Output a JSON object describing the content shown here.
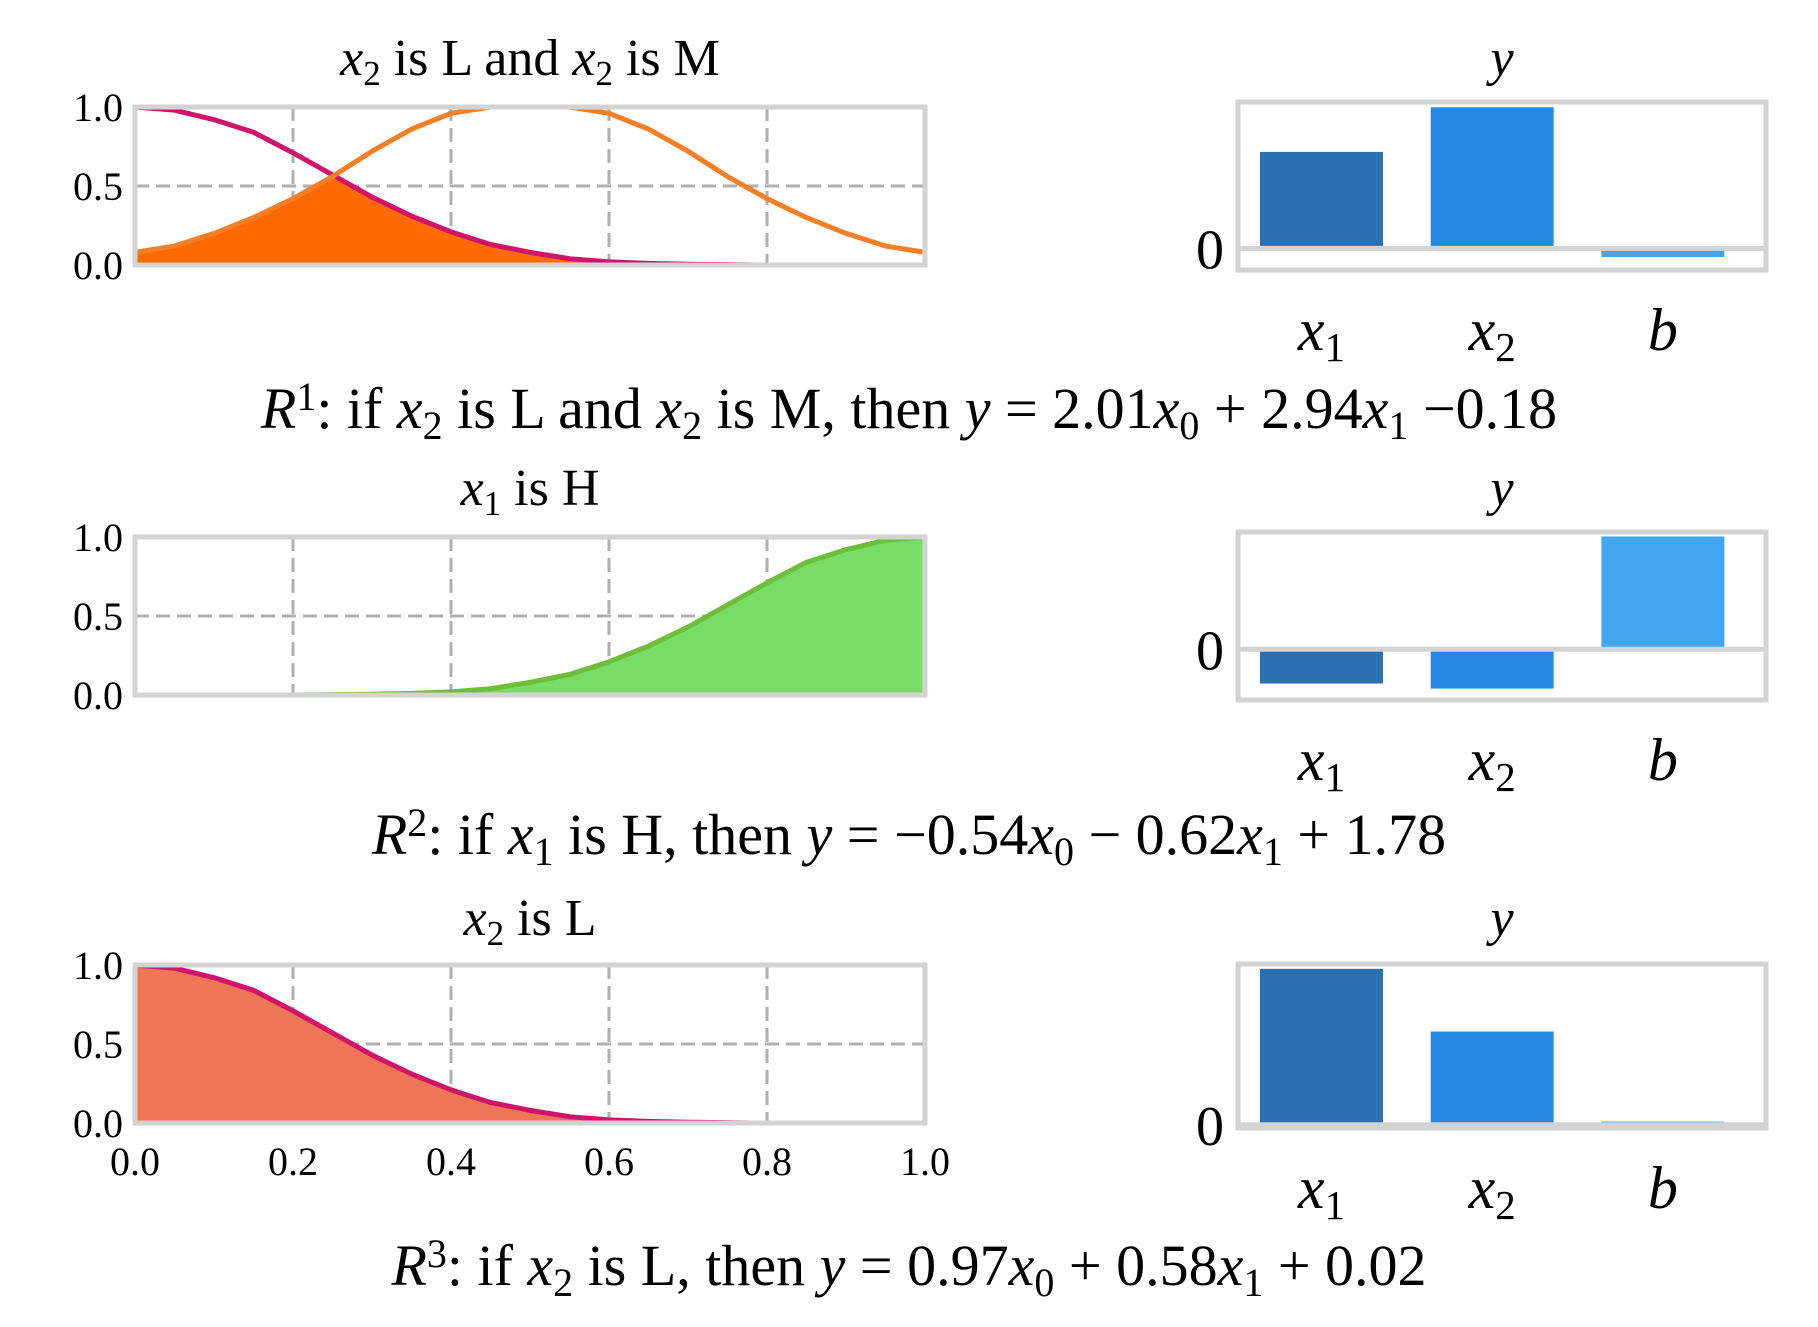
{
  "colors": {
    "frame": "#d3d3d3",
    "grid": "#b0b0b0",
    "low": "#d0136b",
    "mid": "#f47f26",
    "high": "#6dbf3a",
    "fill_r1": "#ff6a00",
    "fill_r2": "#77dd66",
    "fill_r3": "#ef7557",
    "bar_x1": "#2c70b4",
    "bar_x2": "#2589e3",
    "bar_b": "#41a6ef"
  },
  "rules": [
    {
      "id": "R1",
      "rule_label": {
        "letter": "R",
        "index": "1"
      },
      "rule_text_parts": [
        ": if ",
        "x",
        "2",
        " is L and ",
        "x",
        "2",
        " is M, then ",
        "y",
        " = 2.01",
        "x",
        "0",
        " + 2.94",
        "x",
        "1",
        " −0.18"
      ],
      "membership_title_parts": [
        "x",
        "2",
        " is L and ",
        "x",
        "2",
        " is M"
      ],
      "bar_title": "y",
      "curves": [
        {
          "name": "L",
          "color_key": "low",
          "x": [
            0.0,
            0.05,
            0.1,
            0.15,
            0.2,
            0.25,
            0.3,
            0.35,
            0.4,
            0.45,
            0.5,
            0.55,
            0.6,
            0.65,
            0.7,
            0.75,
            0.8
          ],
          "y": [
            1.0,
            0.98,
            0.92,
            0.84,
            0.71,
            0.57,
            0.43,
            0.31,
            0.21,
            0.13,
            0.08,
            0.04,
            0.02,
            0.01,
            0.005,
            0.002,
            0.0
          ]
        },
        {
          "name": "M",
          "color_key": "mid",
          "x": [
            0.0,
            0.05,
            0.1,
            0.15,
            0.2,
            0.25,
            0.3,
            0.35,
            0.4,
            0.45,
            0.5,
            0.55,
            0.6,
            0.65,
            0.7,
            0.75,
            0.8,
            0.85,
            0.9,
            0.95,
            1.0
          ],
          "y": [
            0.08,
            0.12,
            0.2,
            0.3,
            0.42,
            0.56,
            0.72,
            0.86,
            0.96,
            1.0,
            1.0,
            1.0,
            0.96,
            0.86,
            0.72,
            0.56,
            0.42,
            0.3,
            0.2,
            0.12,
            0.08
          ]
        }
      ],
      "fill": {
        "color_key": "fill_r1",
        "x": [
          0.0,
          0.05,
          0.1,
          0.15,
          0.2,
          0.25,
          0.3,
          0.35,
          0.4,
          0.45,
          0.5,
          0.55,
          0.6,
          0.65,
          0.7,
          0.75,
          0.8
        ],
        "y": [
          0.08,
          0.12,
          0.2,
          0.3,
          0.42,
          0.55,
          0.43,
          0.31,
          0.21,
          0.13,
          0.08,
          0.04,
          0.02,
          0.01,
          0.005,
          0.002,
          0.0
        ]
      },
      "bars": {
        "categories_parts": [
          [
            "x",
            "1"
          ],
          [
            "x",
            "2"
          ],
          [
            "b",
            ""
          ]
        ],
        "values": [
          2.01,
          2.94,
          -0.18
        ],
        "ylim": [
          -0.45,
          3.05
        ]
      }
    },
    {
      "id": "R2",
      "rule_label": {
        "letter": "R",
        "index": "2"
      },
      "rule_text_parts": [
        ": if ",
        "x",
        "1",
        " is H, then ",
        "y",
        " = −0.54",
        "x",
        "0",
        " − 0.62",
        "x",
        "1",
        " + 1.78"
      ],
      "membership_title_parts": [
        "x",
        "1",
        " is H"
      ],
      "bar_title": "y",
      "curves": [
        {
          "name": "H",
          "color_key": "high",
          "x": [
            0.2,
            0.25,
            0.3,
            0.35,
            0.4,
            0.45,
            0.5,
            0.55,
            0.6,
            0.65,
            0.7,
            0.75,
            0.8,
            0.85,
            0.9,
            0.95,
            1.0
          ],
          "y": [
            0.0,
            0.002,
            0.005,
            0.01,
            0.02,
            0.04,
            0.08,
            0.13,
            0.21,
            0.31,
            0.43,
            0.57,
            0.71,
            0.84,
            0.92,
            0.98,
            1.0
          ]
        }
      ],
      "fill": {
        "color_key": "fill_r2",
        "x": [
          0.2,
          0.25,
          0.3,
          0.35,
          0.4,
          0.45,
          0.5,
          0.55,
          0.6,
          0.65,
          0.7,
          0.75,
          0.8,
          0.85,
          0.9,
          0.95,
          1.0
        ],
        "y": [
          0.0,
          0.002,
          0.005,
          0.01,
          0.02,
          0.04,
          0.08,
          0.13,
          0.21,
          0.31,
          0.43,
          0.57,
          0.71,
          0.84,
          0.92,
          0.98,
          1.0
        ]
      },
      "bars": {
        "categories_parts": [
          [
            "x",
            "1"
          ],
          [
            "x",
            "2"
          ],
          [
            "b",
            ""
          ]
        ],
        "values": [
          -0.54,
          -0.62,
          1.78
        ],
        "ylim": [
          -0.8,
          1.85
        ]
      }
    },
    {
      "id": "R3",
      "rule_label": {
        "letter": "R",
        "index": "3"
      },
      "rule_text_parts": [
        ": if ",
        "x",
        "2",
        " is L, then ",
        "y",
        " = 0.97",
        "x",
        "0",
        " + 0.58",
        "x",
        "1",
        " + 0.02"
      ],
      "membership_title_parts": [
        "x",
        "2",
        " is L"
      ],
      "bar_title": "y",
      "curves": [
        {
          "name": "L",
          "color_key": "low",
          "x": [
            0.0,
            0.05,
            0.1,
            0.15,
            0.2,
            0.25,
            0.3,
            0.35,
            0.4,
            0.45,
            0.5,
            0.55,
            0.6,
            0.65,
            0.7,
            0.75,
            0.78
          ],
          "y": [
            1.0,
            0.98,
            0.92,
            0.84,
            0.71,
            0.57,
            0.43,
            0.31,
            0.21,
            0.13,
            0.08,
            0.04,
            0.02,
            0.01,
            0.005,
            0.002,
            0.0
          ]
        }
      ],
      "fill": {
        "color_key": "fill_r3",
        "x": [
          0.0,
          0.05,
          0.1,
          0.15,
          0.2,
          0.25,
          0.3,
          0.35,
          0.4,
          0.45,
          0.5,
          0.55,
          0.6,
          0.65,
          0.7,
          0.75,
          0.78
        ],
        "y": [
          1.0,
          0.98,
          0.92,
          0.84,
          0.71,
          0.57,
          0.43,
          0.31,
          0.21,
          0.13,
          0.08,
          0.04,
          0.02,
          0.01,
          0.005,
          0.002,
          0.0
        ]
      },
      "bars": {
        "categories_parts": [
          [
            "x",
            "1"
          ],
          [
            "x",
            "2"
          ],
          [
            "b",
            ""
          ]
        ],
        "values": [
          0.97,
          0.58,
          0.02
        ],
        "ylim": [
          -0.02,
          1.0
        ]
      }
    }
  ],
  "axes": {
    "membership_yticks": [
      "0.0",
      "0.5",
      "1.0"
    ],
    "membership_ytick_values": [
      0.0,
      0.5,
      1.0
    ],
    "membership_xticks": [
      "0.0",
      "0.2",
      "0.4",
      "0.6",
      "0.8",
      "1.0"
    ],
    "membership_xtick_values": [
      0.0,
      0.2,
      0.4,
      0.6,
      0.8,
      1.0
    ],
    "bar_ytick": "0"
  },
  "chart_data": [
    {
      "type": "line",
      "title": "x2 is L and x2 is M",
      "xlim": [
        0.0,
        1.0
      ],
      "ylim": [
        0.0,
        1.0
      ],
      "grid": true,
      "series": [
        {
          "name": "L",
          "x": [
            0.0,
            0.2,
            0.4,
            0.6,
            0.8
          ],
          "y": [
            1.0,
            0.71,
            0.21,
            0.02,
            0.0
          ]
        },
        {
          "name": "M",
          "x": [
            0.0,
            0.2,
            0.4,
            0.5,
            0.6,
            0.8,
            1.0
          ],
          "y": [
            0.08,
            0.42,
            0.96,
            1.0,
            0.96,
            0.42,
            0.08
          ]
        }
      ]
    },
    {
      "type": "bar",
      "title": "y",
      "categories": [
        "x1",
        "x2",
        "b"
      ],
      "values": [
        2.01,
        2.94,
        -0.18
      ]
    },
    {
      "type": "line",
      "title": "x1 is H",
      "xlim": [
        0.0,
        1.0
      ],
      "ylim": [
        0.0,
        1.0
      ],
      "grid": true,
      "series": [
        {
          "name": "H",
          "x": [
            0.2,
            0.4,
            0.6,
            0.8,
            1.0
          ],
          "y": [
            0.0,
            0.02,
            0.21,
            0.71,
            1.0
          ]
        }
      ]
    },
    {
      "type": "bar",
      "title": "y",
      "categories": [
        "x1",
        "x2",
        "b"
      ],
      "values": [
        -0.54,
        -0.62,
        1.78
      ]
    },
    {
      "type": "line",
      "title": "x2 is L",
      "xlim": [
        0.0,
        1.0
      ],
      "ylim": [
        0.0,
        1.0
      ],
      "grid": true,
      "series": [
        {
          "name": "L",
          "x": [
            0.0,
            0.2,
            0.4,
            0.6,
            0.8
          ],
          "y": [
            1.0,
            0.71,
            0.21,
            0.02,
            0.0
          ]
        }
      ]
    },
    {
      "type": "bar",
      "title": "y",
      "categories": [
        "x1",
        "x2",
        "b"
      ],
      "values": [
        0.97,
        0.58,
        0.02
      ]
    }
  ]
}
